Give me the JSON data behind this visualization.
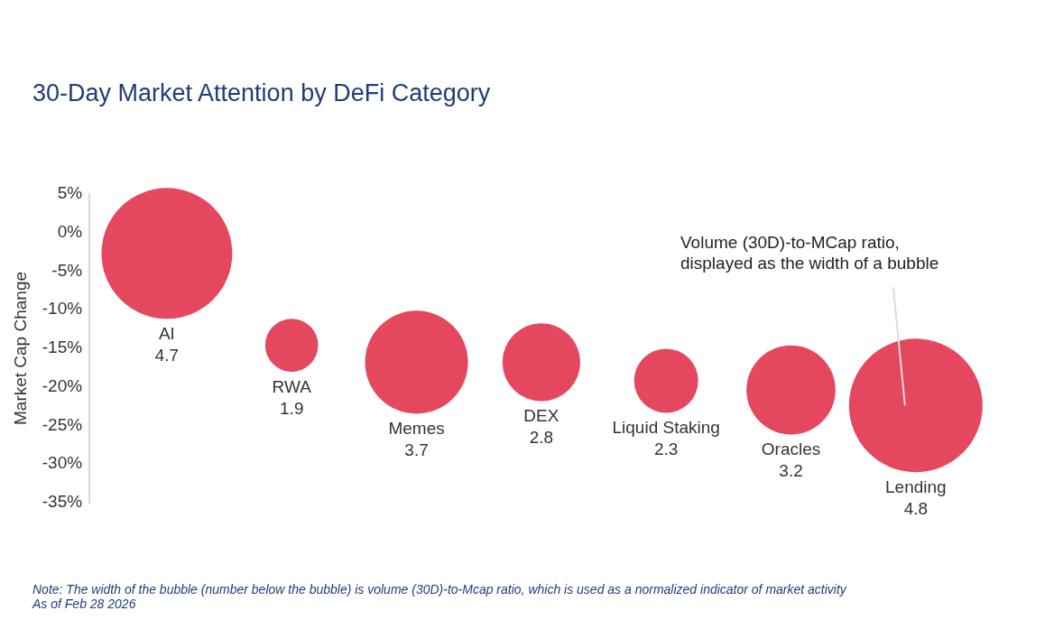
{
  "chart_data": {
    "type": "bubble",
    "title": "30-Day Market Attention by DeFi Category",
    "ylabel": "Market Cap Change",
    "categories": [
      "AI",
      "RWA",
      "Memes",
      "DEX",
      "Liquid Staking",
      "Oracles",
      "Lending"
    ],
    "values": [
      -2.7,
      -14.6,
      -16.8,
      -16.8,
      -19.2,
      -20.4,
      -22.4
    ],
    "sizes": [
      0.959,
      0.157,
      0.594,
      0.34,
      0.23,
      0.444,
      1
    ],
    "color": "#e5475f",
    "ylim": [
      -35,
      5
    ],
    "yticks": [
      {
        "value": 5,
        "label": "5%"
      },
      {
        "value": 0,
        "label": "0%"
      },
      {
        "value": -5,
        "label": "-5%"
      },
      {
        "value": -10,
        "label": "-10%"
      },
      {
        "value": -15,
        "label": "-15%"
      },
      {
        "value": -20,
        "label": "-20%"
      },
      {
        "value": -25,
        "label": "-25%"
      },
      {
        "value": -30,
        "label": "-30%"
      },
      {
        "value": -35,
        "label": "-35%"
      }
    ],
    "grid": false,
    "legend": false,
    "annotations": [
      "Volume (30D)-to-MCap ratio, displayed as the width of a bubble",
      "4.7",
      "1.9",
      "3.7",
      "2.8",
      "2.3",
      "3.2",
      "4.8",
      "Note: The width of the bubble (number below the bubble) is volume (30D)-to-Mcap ratio, which is used as a normalized indicator of market activity",
      "As of Feb 28 2026"
    ]
  }
}
